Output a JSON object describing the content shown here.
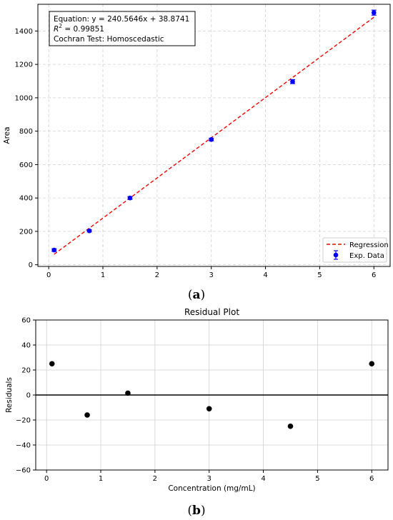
{
  "chart_data": [
    {
      "type": "scatter",
      "panel_label": {
        "open": "(",
        "letter": "a",
        "close": ")"
      },
      "xlabel": "",
      "ylabel": "Area",
      "xlim": [
        -0.2,
        6.3
      ],
      "ylim": [
        -10,
        1560
      ],
      "xticks": [
        0,
        1,
        2,
        3,
        4,
        5,
        6
      ],
      "yticks": [
        0,
        200,
        400,
        600,
        800,
        1000,
        1200,
        1400
      ],
      "grid": true,
      "legend_position": "bottom-right",
      "series": [
        {
          "name": "Regression",
          "kind": "line",
          "style": "dashed",
          "color": "#ff0000",
          "x": [
            0.1,
            6.0
          ],
          "y": [
            62.93,
            1482.26
          ]
        },
        {
          "name": "Exp. Data",
          "kind": "points-with-errorbars",
          "color": "#0000ff",
          "x": [
            0.1,
            0.75,
            1.5,
            3.0,
            4.5,
            6.0
          ],
          "y": [
            88,
            203,
            400,
            750,
            1097,
            1510
          ],
          "err": [
            8,
            6,
            8,
            8,
            12,
            15
          ]
        }
      ],
      "annotation": {
        "line1": "Equation: y = 240.5646x + 38.8741",
        "r2_symbol": "R",
        "r2_exp": "2",
        "r2_value": " = 0.99851",
        "line3": "Cochran Test: Homoscedastic"
      }
    },
    {
      "type": "scatter",
      "panel_label": {
        "open": "(",
        "letter": "b",
        "close": ")"
      },
      "title": "Residual Plot",
      "xlabel": "Concentration (mg/mL)",
      "ylabel": "Residuals",
      "xlim": [
        -0.2,
        6.3
      ],
      "ylim": [
        -60,
        60
      ],
      "xticks": [
        0,
        1,
        2,
        3,
        4,
        5,
        6
      ],
      "yticks": [
        -60,
        -40,
        -20,
        0,
        20,
        40,
        60
      ],
      "grid": true,
      "zero_line": true,
      "series": [
        {
          "kind": "points",
          "color": "#000000",
          "x": [
            0.1,
            0.75,
            1.5,
            3.0,
            4.5,
            6.0
          ],
          "y": [
            25,
            -16,
            1.5,
            -11,
            -25,
            25
          ]
        }
      ]
    }
  ]
}
